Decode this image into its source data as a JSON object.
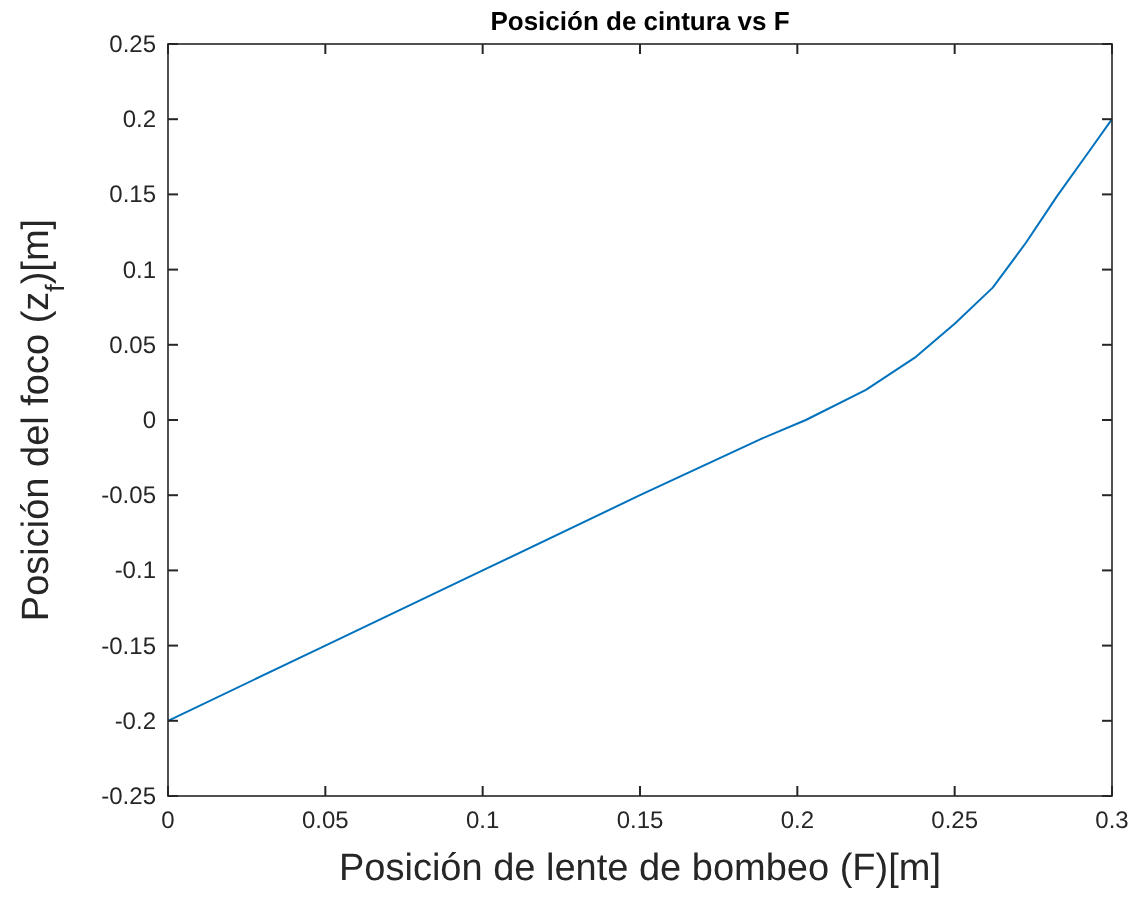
{
  "chart_data": {
    "type": "line",
    "title": "Posición de cintura vs F",
    "xlabel": "Posición de lente de bombeo (F)[m]",
    "ylabel": "Posición del foco (z$_{f}$)[m]",
    "xlim": [
      0,
      0.3
    ],
    "ylim": [
      -0.25,
      0.25
    ],
    "xticks": [
      0,
      0.05,
      0.1,
      0.15,
      0.2,
      0.25,
      0.3
    ],
    "yticks": [
      -0.25,
      -0.2,
      -0.15,
      -0.1,
      -0.05,
      0,
      0.05,
      0.1,
      0.15,
      0.2,
      0.25
    ],
    "grid": false,
    "series": [
      {
        "color": "#0072bd",
        "x": [
          0,
          0.05,
          0.1,
          0.15,
          0.188,
          0.2027,
          0.2218,
          0.2377,
          0.25,
          0.2621,
          0.2727,
          0.2826,
          0.2932,
          0.3
        ],
        "values": [
          -0.2,
          -0.15,
          -0.1,
          -0.05,
          -0.013,
          0,
          0.02,
          0.042,
          0.064,
          0.088,
          0.118,
          0.149,
          0.18,
          0.2
        ]
      }
    ]
  }
}
